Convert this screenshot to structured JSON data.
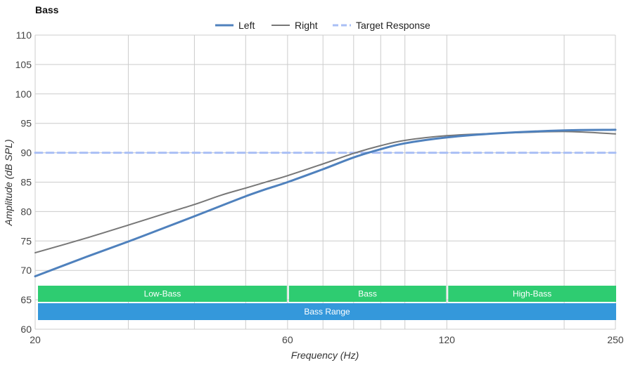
{
  "chart_data": {
    "type": "line",
    "title": "Bass",
    "xlabel": "Frequency (Hz)",
    "ylabel": "Amplitude (dB SPL)",
    "xscale": "log",
    "xlim": [
      20,
      250
    ],
    "ylim": [
      60,
      110
    ],
    "x_ticks": [
      20,
      60,
      120,
      250
    ],
    "y_ticks": [
      60,
      65,
      70,
      75,
      80,
      85,
      90,
      95,
      100,
      105,
      110
    ],
    "x_minor_grid": [
      30,
      40,
      50,
      70,
      80,
      90,
      100,
      200
    ],
    "grid": true,
    "legend": "top-center",
    "series": [
      {
        "name": "Left",
        "color": "#4f81bd",
        "style": "solid-thick",
        "x": [
          20,
          25,
          30,
          35,
          40,
          45,
          50,
          55,
          60,
          70,
          80,
          90,
          100,
          120,
          150,
          200,
          250
        ],
        "y": [
          69.0,
          72.3,
          74.9,
          77.2,
          79.2,
          81.0,
          82.6,
          83.9,
          85.0,
          87.2,
          89.2,
          90.6,
          91.6,
          92.6,
          93.3,
          93.8,
          93.9
        ]
      },
      {
        "name": "Right",
        "color": "#777777",
        "style": "solid",
        "x": [
          20,
          25,
          30,
          35,
          40,
          45,
          50,
          55,
          60,
          70,
          80,
          90,
          100,
          120,
          150,
          200,
          250
        ],
        "y": [
          73.0,
          75.5,
          77.7,
          79.6,
          81.2,
          82.8,
          84.0,
          85.1,
          86.1,
          88.1,
          89.9,
          91.2,
          92.1,
          92.9,
          93.3,
          93.6,
          93.2
        ]
      },
      {
        "name": "Target Response",
        "color": "#a9bff5",
        "style": "dashed",
        "x": [
          20,
          250
        ],
        "y": [
          90,
          90
        ]
      }
    ],
    "bands": [
      {
        "label": "Low-Bass",
        "from": 20,
        "to": 60,
        "row": 1,
        "color": "#2ecc71"
      },
      {
        "label": "Bass",
        "from": 60,
        "to": 120,
        "row": 1,
        "color": "#2ecc71"
      },
      {
        "label": "High-Bass",
        "from": 120,
        "to": 250,
        "row": 1,
        "color": "#2ecc71"
      },
      {
        "label": "Bass Range",
        "from": 20,
        "to": 250,
        "row": 2,
        "color": "#3498db"
      }
    ]
  }
}
